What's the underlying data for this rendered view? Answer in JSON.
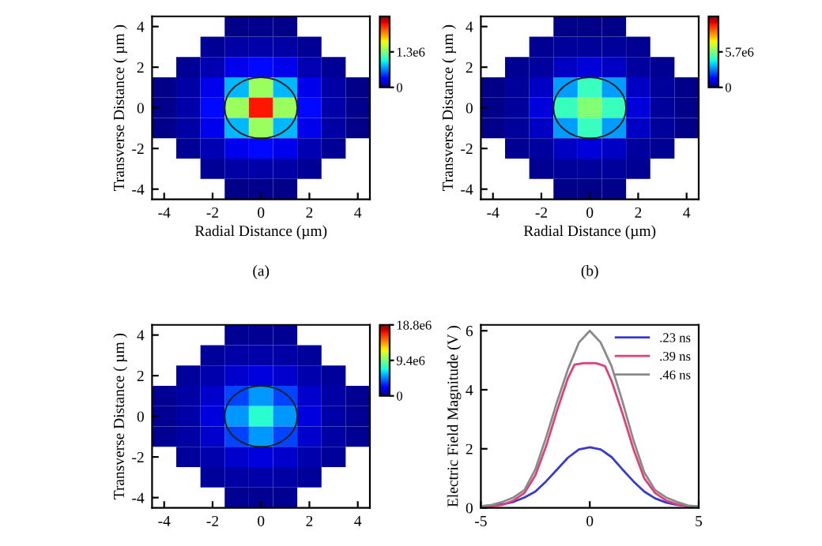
{
  "chart_data": [
    {
      "type": "heatmap",
      "xlabel": "Radial Distance (µm)",
      "ylabel": "Transverse Distance ( µm )",
      "annotations": [
        "(a)"
      ],
      "categories": [
        "-4",
        null,
        "-2",
        null,
        "0",
        null,
        "2",
        null,
        "4"
      ],
      "y_categories": [
        "4",
        null,
        "2",
        null,
        "0",
        null,
        "-2",
        null,
        "-4"
      ],
      "clim": [
        0,
        2600000
      ],
      "cticks": [
        0,
        {
          "value": 1300000,
          "label": "1.3e6"
        }
      ],
      "cells": [
        [
          null,
          null,
          null,
          30000,
          40000,
          30000,
          null,
          null,
          null
        ],
        [
          null,
          null,
          60000,
          90000,
          100000,
          90000,
          60000,
          null,
          null
        ],
        [
          null,
          60000,
          120000,
          250000,
          350000,
          250000,
          120000,
          60000,
          null
        ],
        [
          30000,
          90000,
          250000,
          800000,
          1400000,
          800000,
          250000,
          90000,
          30000
        ],
        [
          40000,
          100000,
          350000,
          1400000,
          2300000,
          1400000,
          350000,
          100000,
          40000
        ],
        [
          30000,
          90000,
          250000,
          800000,
          1400000,
          800000,
          250000,
          90000,
          30000
        ],
        [
          null,
          60000,
          120000,
          250000,
          350000,
          250000,
          120000,
          60000,
          null
        ],
        [
          null,
          null,
          60000,
          90000,
          100000,
          90000,
          60000,
          null,
          null
        ],
        [
          null,
          null,
          null,
          30000,
          40000,
          30000,
          null,
          null,
          null
        ]
      ]
    },
    {
      "type": "heatmap",
      "xlabel": "Radial Distance (µm)",
      "ylabel": "Transverse Distance ( µm )",
      "annotations": [
        "(b)"
      ],
      "categories": [
        "-4",
        null,
        "-2",
        null,
        "0",
        null,
        "2",
        null,
        "4"
      ],
      "y_categories": [
        "4",
        null,
        "2",
        null,
        "0",
        null,
        "-2",
        null,
        "-4"
      ],
      "clim": [
        0,
        11400000
      ],
      "cticks": [
        0,
        {
          "value": 5700000,
          "label": "5.7e6"
        }
      ],
      "cells": [
        [
          null,
          null,
          null,
          100000,
          120000,
          100000,
          null,
          null,
          null
        ],
        [
          null,
          null,
          200000,
          280000,
          300000,
          280000,
          200000,
          null,
          null
        ],
        [
          null,
          200000,
          350000,
          700000,
          900000,
          700000,
          350000,
          200000,
          null
        ],
        [
          100000,
          280000,
          700000,
          3200000,
          4800000,
          3200000,
          700000,
          280000,
          100000
        ],
        [
          120000,
          300000,
          900000,
          4800000,
          5800000,
          4800000,
          900000,
          300000,
          120000
        ],
        [
          100000,
          280000,
          700000,
          3200000,
          4800000,
          3200000,
          700000,
          280000,
          100000
        ],
        [
          null,
          200000,
          350000,
          700000,
          900000,
          700000,
          350000,
          200000,
          null
        ],
        [
          null,
          null,
          200000,
          280000,
          300000,
          280000,
          200000,
          null,
          null
        ],
        [
          null,
          null,
          null,
          100000,
          120000,
          100000,
          null,
          null,
          null
        ]
      ]
    },
    {
      "type": "heatmap",
      "ylabel": "Transverse Distance ( µm )",
      "categories": [
        "-4",
        null,
        "-2",
        null,
        "0",
        null,
        "2",
        null,
        "4"
      ],
      "y_categories": [
        "4",
        null,
        "2",
        null,
        "0",
        null,
        "-2",
        null,
        "-4"
      ],
      "clim": [
        0,
        18800000
      ],
      "cticks": [
        0,
        {
          "value": 9400000,
          "label": "9.4e6"
        },
        {
          "value": 18800000,
          "label": "18.8e6"
        }
      ],
      "cells": [
        [
          null,
          null,
          null,
          300000,
          350000,
          300000,
          null,
          null,
          null
        ],
        [
          null,
          null,
          500000,
          650000,
          700000,
          650000,
          500000,
          null,
          null
        ],
        [
          null,
          500000,
          800000,
          1300000,
          1600000,
          1300000,
          800000,
          500000,
          null
        ],
        [
          300000,
          650000,
          1300000,
          3600000,
          5200000,
          3600000,
          1300000,
          650000,
          300000
        ],
        [
          350000,
          700000,
          1600000,
          5200000,
          7500000,
          5200000,
          1600000,
          700000,
          350000
        ],
        [
          300000,
          650000,
          1300000,
          3600000,
          5200000,
          3600000,
          1300000,
          650000,
          300000
        ],
        [
          null,
          500000,
          800000,
          1300000,
          1600000,
          1300000,
          800000,
          500000,
          null
        ],
        [
          null,
          null,
          500000,
          650000,
          700000,
          650000,
          500000,
          null,
          null
        ],
        [
          null,
          null,
          null,
          300000,
          350000,
          300000,
          null,
          null,
          null
        ]
      ]
    },
    {
      "type": "line",
      "ylabel": "Electric Field Magnitude (V )",
      "xlim": [
        -5,
        5
      ],
      "xticks": [
        -5,
        0,
        5
      ],
      "ylim": [
        0,
        6.2
      ],
      "yticks": [
        0,
        2,
        4,
        6
      ],
      "legend": "top right",
      "series": [
        {
          "name": ".23 ns",
          "color": "#3a3ad0",
          "x": [
            -5,
            -4.5,
            -4,
            -3.5,
            -3,
            -2.5,
            -2,
            -1.5,
            -1,
            -0.5,
            0,
            0.5,
            1,
            1.5,
            2,
            2.5,
            3,
            3.5,
            4,
            4.5,
            5
          ],
          "values": [
            0.05,
            0.08,
            0.12,
            0.2,
            0.35,
            0.55,
            0.9,
            1.3,
            1.7,
            1.98,
            2.05,
            1.98,
            1.72,
            1.3,
            0.9,
            0.55,
            0.32,
            0.18,
            0.1,
            0.06,
            0.04
          ]
        },
        {
          "name": ".39 ns",
          "color": "#e0407a",
          "x": [
            -5,
            -4.5,
            -4,
            -3.5,
            -3,
            -2.5,
            -2,
            -1.5,
            -1,
            -0.7,
            -0.3,
            0,
            0.3,
            0.7,
            1,
            1.5,
            2,
            2.5,
            3,
            3.5,
            4,
            4.5,
            5
          ],
          "values": [
            0.02,
            0.05,
            0.1,
            0.25,
            0.5,
            1.1,
            2.1,
            3.3,
            4.4,
            4.85,
            4.9,
            4.9,
            4.9,
            4.8,
            4.3,
            3.2,
            2.0,
            1.0,
            0.5,
            0.25,
            0.12,
            0.05,
            0.02
          ]
        },
        {
          "name": ".46 ns",
          "color": "#8a8a8a",
          "x": [
            -5,
            -4.5,
            -4,
            -3.5,
            -3,
            -2.5,
            -2,
            -1.5,
            -1,
            -0.5,
            0,
            0.5,
            1,
            1.5,
            2,
            2.5,
            3,
            3.5,
            4,
            4.5,
            5
          ],
          "values": [
            0.05,
            0.1,
            0.2,
            0.35,
            0.6,
            1.3,
            2.4,
            3.6,
            4.7,
            5.6,
            6.0,
            5.6,
            4.8,
            3.6,
            2.3,
            1.2,
            0.6,
            0.35,
            0.2,
            0.08,
            0.04
          ]
        }
      ]
    }
  ]
}
